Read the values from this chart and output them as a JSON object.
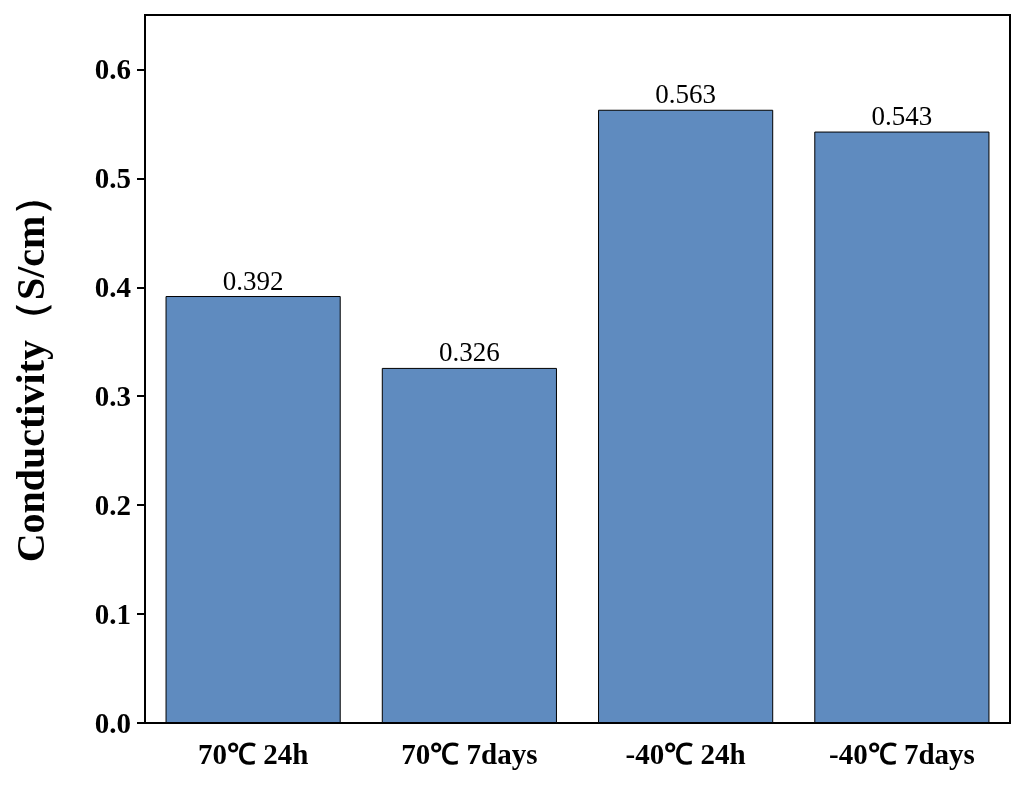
{
  "chart_data": {
    "type": "bar",
    "ylabel": "Conductivity（S/cm）",
    "categories": [
      "70℃ 24h",
      "70℃ 7days",
      "-40℃ 24h",
      "-40℃ 7days"
    ],
    "values": [
      0.392,
      0.326,
      0.563,
      0.543
    ],
    "color": "#5f8bbf",
    "ylim": [
      0,
      0.65
    ],
    "yticks": [
      {
        "value": 0,
        "label": "0.0"
      },
      {
        "value": 0.1,
        "label": "0.1"
      },
      {
        "value": 0.2,
        "label": "0.2"
      },
      {
        "value": 0.3,
        "label": "0.3"
      },
      {
        "value": 0.4,
        "label": "0.4"
      },
      {
        "value": 0.5,
        "label": "0.5"
      },
      {
        "value": 0.6,
        "label": "0.6"
      }
    ],
    "data_labels": true,
    "grid": false
  }
}
